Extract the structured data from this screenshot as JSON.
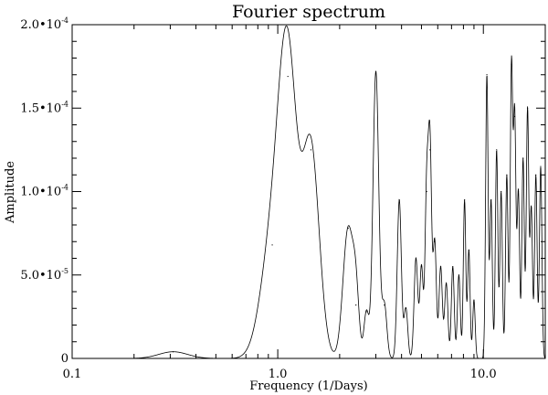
{
  "chart_data": {
    "type": "line",
    "title": "Fourier spectrum",
    "xlabel": "Frequency (1/Days)",
    "ylabel": "Amplitude",
    "x_scale": "log",
    "xlim": [
      0.1,
      20
    ],
    "ylim": [
      0,
      0.0002
    ],
    "grid": false,
    "x_ticks": [
      {
        "value": 0.1,
        "label": "0.1"
      },
      {
        "value": 1.0,
        "label": "1.0"
      },
      {
        "value": 10.0,
        "label": "10.0"
      }
    ],
    "y_ticks": [
      {
        "value": 0,
        "mantissa": "0",
        "exponent": ""
      },
      {
        "value": 5e-05,
        "mantissa": "5.0•10",
        "exponent": "-5"
      },
      {
        "value": 0.0001,
        "mantissa": "1.0•10",
        "exponent": "-4"
      },
      {
        "value": 0.00015,
        "mantissa": "1.5•10",
        "exponent": "-4"
      },
      {
        "value": 0.0002,
        "mantissa": "2.0•10",
        "exponent": "-4"
      }
    ],
    "series": [
      {
        "color": "#000000",
        "peaks": [
          {
            "f": 0.31,
            "a": 4e-06,
            "w": 0.07
          },
          {
            "f": 0.94,
            "a": 6.8e-05,
            "w": 0.055
          },
          {
            "f": 1.12,
            "a": 0.000169,
            "w": 0.045
          },
          {
            "f": 1.45,
            "a": 0.000125,
            "w": 0.04
          },
          {
            "f": 2.2,
            "a": 7.8e-05,
            "w": 0.025
          },
          {
            "f": 2.4,
            "a": 3.2e-05,
            "w": 0.015
          },
          {
            "f": 2.7,
            "a": 2.8e-05,
            "w": 0.012
          },
          {
            "f": 3.0,
            "a": 0.000172,
            "w": 0.014
          },
          {
            "f": 3.3,
            "a": 3.2e-05,
            "w": 0.012
          },
          {
            "f": 3.9,
            "a": 9.5e-05,
            "w": 0.01
          },
          {
            "f": 4.2,
            "a": 3e-05,
            "w": 0.009
          },
          {
            "f": 4.7,
            "a": 6e-05,
            "w": 0.009
          },
          {
            "f": 5.0,
            "a": 5.5e-05,
            "w": 0.008
          },
          {
            "f": 5.3,
            "a": 0.0001,
            "w": 0.008
          },
          {
            "f": 5.5,
            "a": 0.000125,
            "w": 0.008
          },
          {
            "f": 5.8,
            "a": 7e-05,
            "w": 0.008
          },
          {
            "f": 6.2,
            "a": 5.5e-05,
            "w": 0.008
          },
          {
            "f": 6.6,
            "a": 4.5e-05,
            "w": 0.008
          },
          {
            "f": 7.1,
            "a": 5.5e-05,
            "w": 0.007
          },
          {
            "f": 7.6,
            "a": 5e-05,
            "w": 0.007
          },
          {
            "f": 8.1,
            "a": 9.5e-05,
            "w": 0.006
          },
          {
            "f": 8.5,
            "a": 6.5e-05,
            "w": 0.006
          },
          {
            "f": 9.0,
            "a": 3.5e-05,
            "w": 0.006
          },
          {
            "f": 10.4,
            "a": 0.00017,
            "w": 0.006
          },
          {
            "f": 10.9,
            "a": 9.5e-05,
            "w": 0.006
          },
          {
            "f": 11.6,
            "a": 0.000125,
            "w": 0.006
          },
          {
            "f": 12.2,
            "a": 0.0001,
            "w": 0.006
          },
          {
            "f": 13.0,
            "a": 0.00011,
            "w": 0.006
          },
          {
            "f": 13.7,
            "a": 0.000176,
            "w": 0.006
          },
          {
            "f": 14.2,
            "a": 0.000145,
            "w": 0.006
          },
          {
            "f": 14.8,
            "a": 0.0001,
            "w": 0.006
          },
          {
            "f": 15.6,
            "a": 0.00012,
            "w": 0.006
          },
          {
            "f": 16.4,
            "a": 0.00015,
            "w": 0.006
          },
          {
            "f": 17.1,
            "a": 9e-05,
            "w": 0.006
          },
          {
            "f": 18.0,
            "a": 0.00011,
            "w": 0.006
          },
          {
            "f": 19.0,
            "a": 0.000115,
            "w": 0.006
          }
        ]
      }
    ]
  }
}
